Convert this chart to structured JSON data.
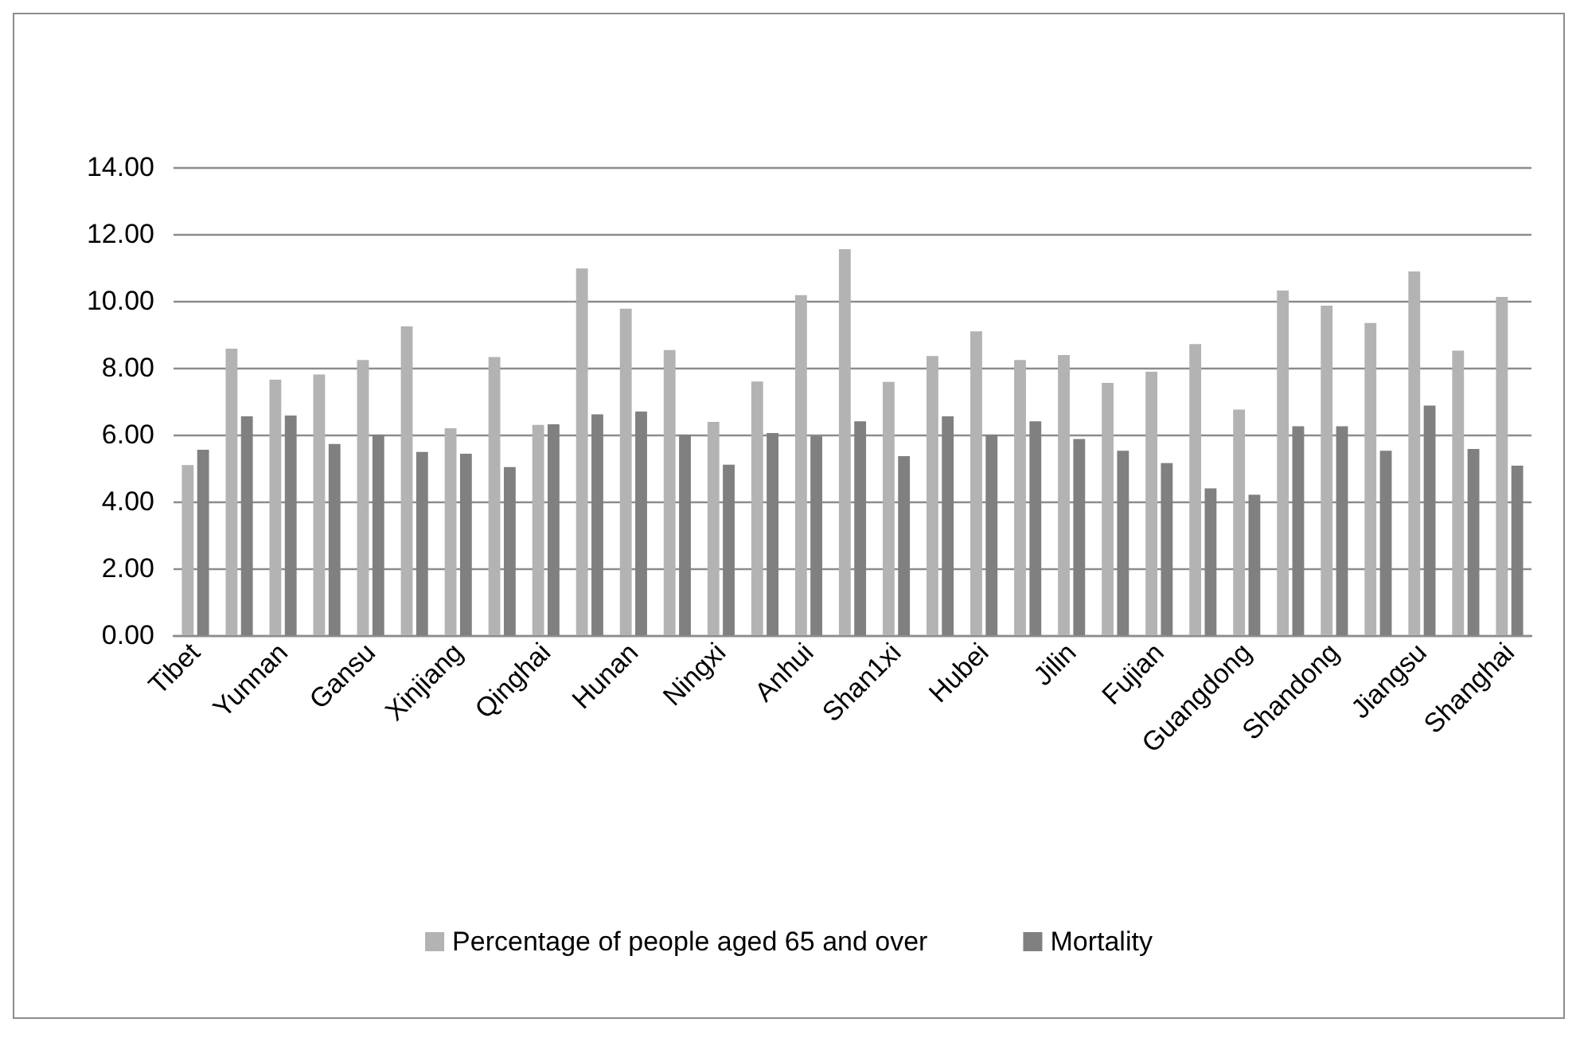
{
  "chart_data": {
    "type": "bar",
    "categories": [
      "Tibet",
      null,
      "Yunnan",
      null,
      "Gansu",
      null,
      "Xinjiang",
      null,
      "Qinghai",
      null,
      "Hunan",
      null,
      "Ningxi",
      null,
      "Anhui",
      null,
      "Shan1xi",
      null,
      "Hubei",
      null,
      "Jilin",
      null,
      "Fujian",
      null,
      "Guangdong",
      null,
      "Shandong",
      null,
      "Jiangsu",
      null,
      "Shanghai"
    ],
    "series": [
      {
        "name": "Percentage of people aged 65 and over",
        "color": "#b3b3b3",
        "values": [
          5.09,
          8.57,
          7.64,
          7.8,
          8.23,
          9.24,
          6.19,
          8.32,
          6.29,
          10.97,
          9.77,
          8.53,
          6.38,
          7.59,
          10.17,
          11.55,
          7.58,
          8.35,
          9.09,
          8.23,
          8.38,
          7.55,
          7.88,
          8.71,
          6.75,
          10.31,
          9.86,
          9.34,
          10.88,
          8.51,
          10.12
        ]
      },
      {
        "name": "Mortality",
        "color": "#808080",
        "values": [
          5.55,
          6.55,
          6.57,
          5.72,
          6.0,
          5.48,
          5.43,
          5.03,
          6.31,
          6.61,
          6.69,
          6.0,
          5.1,
          6.05,
          5.95,
          6.4,
          5.36,
          6.55,
          6.0,
          6.4,
          5.87,
          5.52,
          5.15,
          4.39,
          4.2,
          6.25,
          6.25,
          5.52,
          6.87,
          5.57,
          5.07
        ]
      }
    ],
    "ylim": [
      0,
      14
    ],
    "yticks": [
      {
        "value": 0,
        "label": "0.00"
      },
      {
        "value": 2,
        "label": "2.00"
      },
      {
        "value": 4,
        "label": "4.00"
      },
      {
        "value": 6,
        "label": "6.00"
      },
      {
        "value": 8,
        "label": "8.00"
      },
      {
        "value": 10,
        "label": "10.00"
      },
      {
        "value": 12,
        "label": "12.00"
      },
      {
        "value": 14,
        "label": "14.00"
      }
    ],
    "grid": "y",
    "legend": "bottom"
  }
}
